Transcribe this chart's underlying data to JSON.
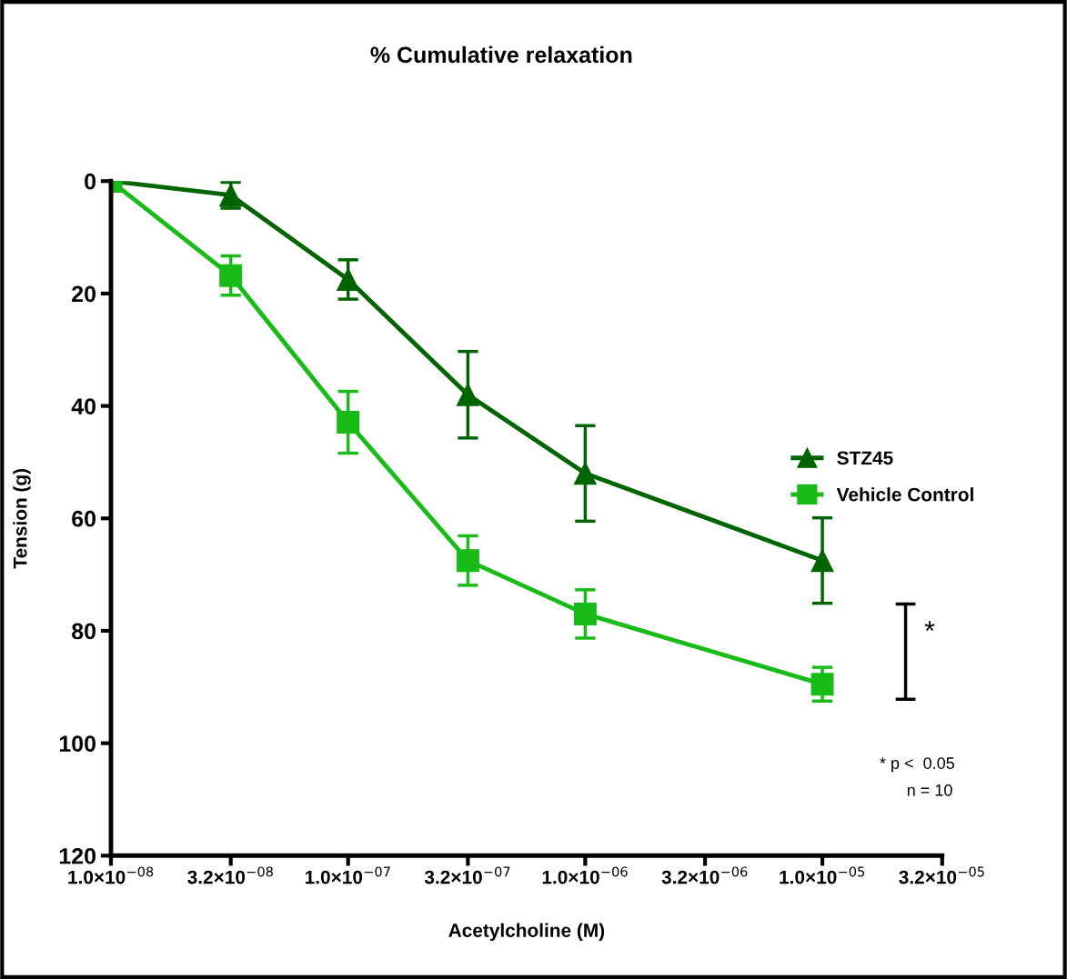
{
  "chart_data": {
    "type": "line",
    "title": "% Cumulative relaxation",
    "xlabel": "Acetylcholine (M)",
    "ylabel": "Tension (g)",
    "log": "x",
    "xlim": [
      1e-08,
      3.2e-05
    ],
    "ylim": [
      120,
      0
    ],
    "xticks": [
      {
        "value": 1e-08,
        "label": "1.0×10$^{−08}$"
      },
      {
        "value": 3.2e-08,
        "label": "3.2×10$^{−08}$"
      },
      {
        "value": 1e-07,
        "label": "1.0×10$^{−07}$"
      },
      {
        "value": 3.2e-07,
        "label": "3.2×10$^{−07}$"
      },
      {
        "value": 1e-06,
        "label": "1.0×10$^{−06}$"
      },
      {
        "value": 3.2e-06,
        "label": "3.2×10$^{−06}$"
      },
      {
        "value": 1e-05,
        "label": "1.0×10$^{−05}$"
      },
      {
        "value": 3.2e-05,
        "label": "3.2×10$^{−05}$"
      }
    ],
    "yticks": [
      0,
      20,
      40,
      60,
      80,
      100,
      120
    ],
    "x": [
      1e-08,
      3.2e-08,
      1e-07,
      3.2e-07,
      1e-06,
      1e-05
    ],
    "series": [
      {
        "name": "STZ45",
        "color": "#006400",
        "marker": "triangle",
        "values": [
          0,
          2.5,
          17.5,
          38,
          52,
          67.5
        ],
        "errors": [
          null,
          2.3,
          3.5,
          7.7,
          8.5,
          7.6
        ]
      },
      {
        "name": "Vehicle Control",
        "color": "#19bb19",
        "marker": "square",
        "values": [
          0,
          16.8,
          42.9,
          67.5,
          77,
          89.5
        ],
        "errors": [
          null,
          3.5,
          5.5,
          4.4,
          4.3,
          3
        ]
      }
    ],
    "legend": "right",
    "grid": false,
    "annotations": [
      "*",
      "* p <  0.05",
      "n = 10"
    ]
  }
}
